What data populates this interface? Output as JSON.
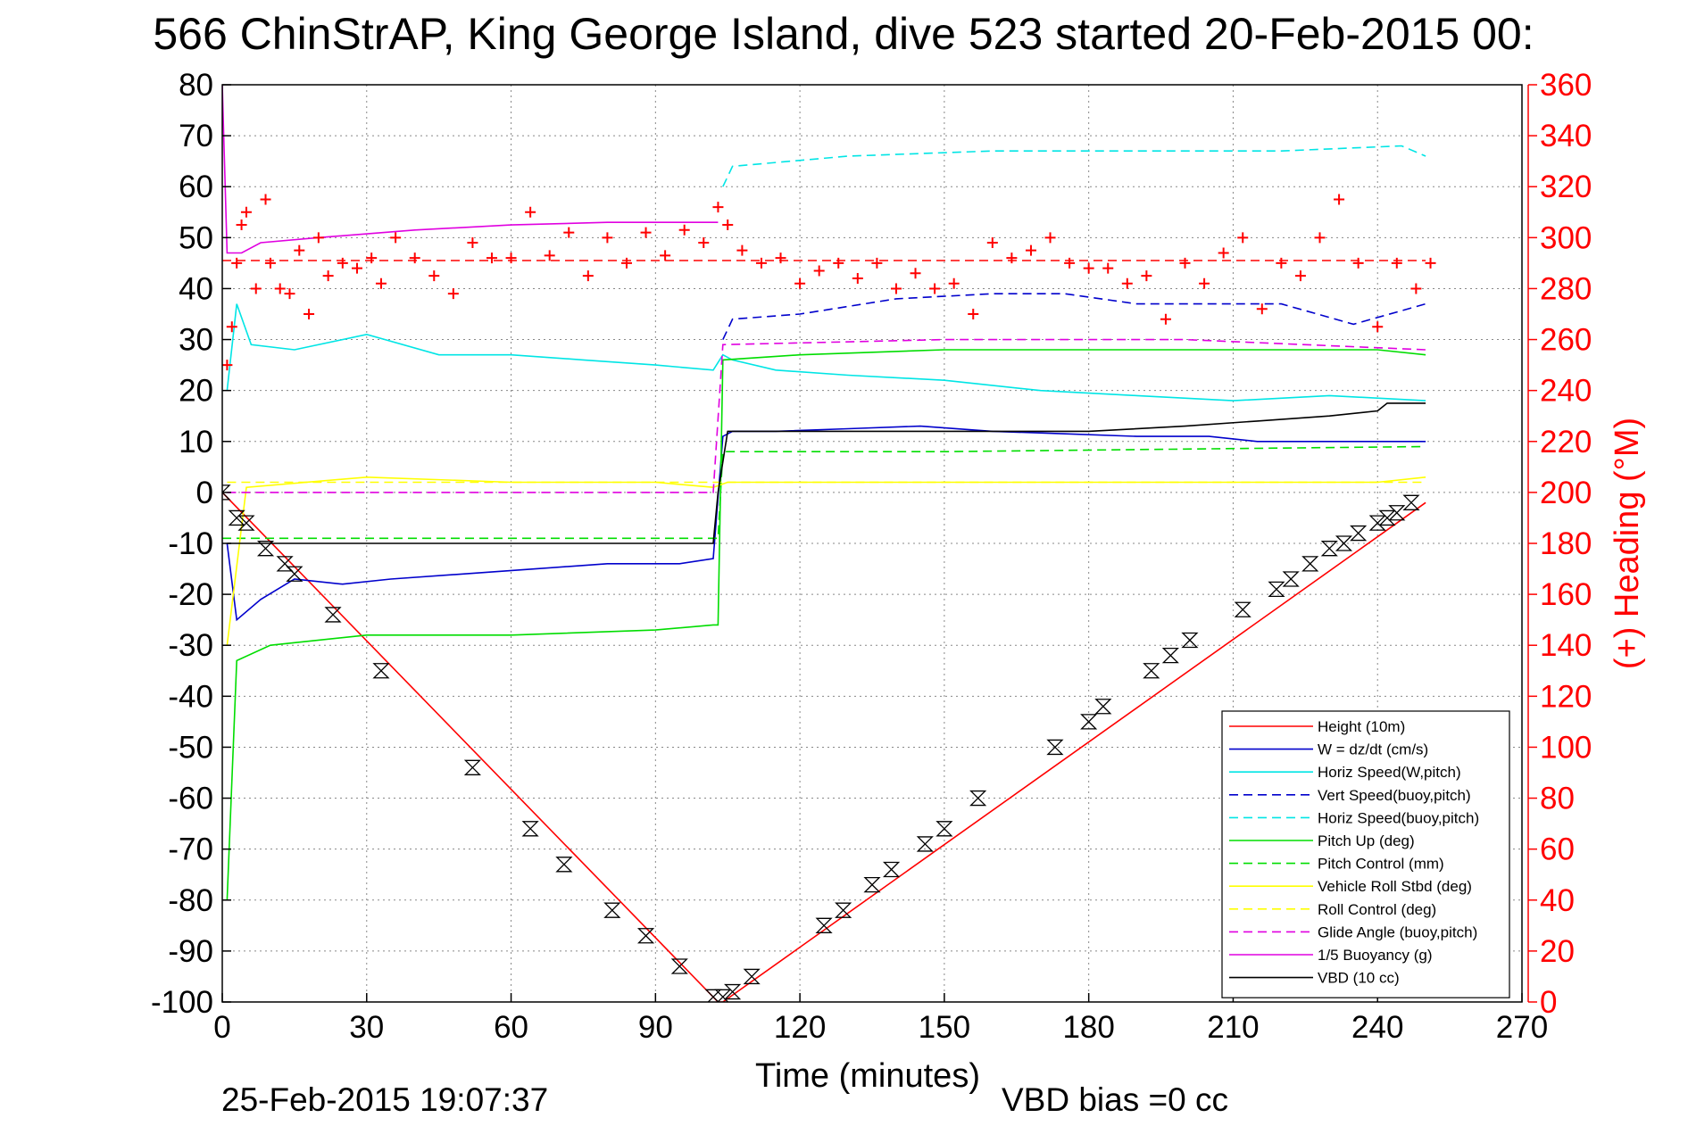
{
  "chart_data": {
    "type": "line",
    "title": "566 ChinStrAP, King George Island, dive 523 started 20-Feb-2015 00:",
    "xlabel": "Time (minutes)",
    "ylabel": "",
    "y2label": "(+) Heading (°M)",
    "xlim": [
      0,
      270
    ],
    "ylim": [
      -100,
      80
    ],
    "y2lim": [
      0,
      360
    ],
    "x_ticks": [
      "0",
      "30",
      "60",
      "90",
      "120",
      "150",
      "180",
      "210",
      "240",
      "270"
    ],
    "y_ticks": [
      "80",
      "70",
      "60",
      "50",
      "40",
      "30",
      "20",
      "10",
      "0",
      "-10",
      "-20",
      "-30",
      "-40",
      "-50",
      "-60",
      "-70",
      "-80",
      "-90",
      "-100"
    ],
    "y2_ticks": [
      "360",
      "340",
      "320",
      "300",
      "280",
      "260",
      "240",
      "220",
      "200",
      "180",
      "160",
      "140",
      "120",
      "100",
      "80",
      "60",
      "40",
      "20",
      "0"
    ],
    "grid": true,
    "legend_position": "bottom-right",
    "footer_left": "25-Feb-2015 19:07:37",
    "footer_right": "VBD bias =0 cc",
    "colors": {
      "red": "#ff0000",
      "blue": "#0000cc",
      "cyan": "#00e5e5",
      "green": "#00dd00",
      "yellow": "#ffff00",
      "magenta": "#e000e0",
      "black": "#000000"
    },
    "series": [
      {
        "name": "Height (10m)",
        "color": "#ff0000",
        "style": "solid",
        "x": [
          0,
          103,
          104,
          250
        ],
        "y": [
          0,
          -100,
          -100,
          -2
        ]
      },
      {
        "name": "W = dz/dt (cm/s)",
        "color": "#0000cc",
        "style": "solid",
        "x": [
          1,
          3,
          8,
          15,
          25,
          35,
          50,
          65,
          80,
          95,
          102,
          104,
          106,
          115,
          130,
          145,
          160,
          175,
          190,
          205,
          215,
          225,
          240,
          250
        ],
        "y": [
          -10,
          -25,
          -21,
          -17,
          -18,
          -17,
          -16,
          -15,
          -14,
          -14,
          -13,
          11,
          12,
          12,
          12.5,
          13,
          12,
          11.5,
          11,
          11,
          10,
          10,
          10,
          10
        ]
      },
      {
        "name": "Horiz Speed(W,pitch)",
        "color": "#00e5e5",
        "style": "solid",
        "x": [
          1,
          3,
          6,
          15,
          30,
          45,
          60,
          75,
          90,
          102,
          104,
          106,
          115,
          130,
          150,
          170,
          190,
          210,
          230,
          250
        ],
        "y": [
          20,
          37,
          29,
          28,
          31,
          27,
          27,
          26,
          25,
          24,
          27,
          26,
          24,
          23,
          22,
          20,
          19,
          18,
          19,
          18
        ]
      },
      {
        "name": "Vert Speed(buoy,pitch)",
        "color": "#0000cc",
        "style": "dashed",
        "x": [
          104,
          106,
          120,
          140,
          160,
          175,
          190,
          205,
          220,
          235,
          250
        ],
        "y": [
          30,
          34,
          35,
          38,
          39,
          39,
          37,
          37,
          37,
          33,
          37
        ]
      },
      {
        "name": "Horiz Speed(buoy,pitch)",
        "color": "#00e5e5",
        "style": "dashed",
        "x": [
          104,
          106,
          130,
          160,
          190,
          220,
          245,
          250
        ],
        "y": [
          60,
          64,
          66,
          67,
          67,
          67,
          68,
          66
        ]
      },
      {
        "name": "Pitch Up (deg)",
        "color": "#00dd00",
        "style": "solid",
        "x": [
          1,
          3,
          10,
          30,
          60,
          90,
          102,
          103,
          104,
          120,
          150,
          180,
          210,
          240,
          250
        ],
        "y": [
          -80,
          -33,
          -30,
          -28,
          -28,
          -27,
          -26,
          -26,
          26,
          27,
          28,
          28,
          28,
          28,
          27
        ]
      },
      {
        "name": "Pitch Control (mm)",
        "color": "#00dd00",
        "style": "dashed",
        "x": [
          0,
          3,
          102,
          103,
          104,
          150,
          200,
          250
        ],
        "y": [
          -9,
          -9,
          -9,
          -9,
          8,
          8,
          8.5,
          9
        ]
      },
      {
        "name": "Vehicle Roll Stbd (deg)",
        "color": "#ffff00",
        "style": "solid",
        "x": [
          1,
          5,
          30,
          60,
          90,
          102,
          105,
          150,
          200,
          240,
          250
        ],
        "y": [
          -30,
          1,
          3,
          2,
          2,
          1,
          2,
          2,
          2,
          2,
          3
        ]
      },
      {
        "name": "Roll Control (deg)",
        "color": "#ffff00",
        "style": "dashed",
        "x": [
          1,
          250
        ],
        "y": [
          2,
          2
        ]
      },
      {
        "name": "Glide Angle (buoy,pitch)",
        "color": "#e000e0",
        "style": "dashed",
        "x": [
          1,
          102,
          104,
          150,
          200,
          250
        ],
        "y": [
          0,
          0,
          29,
          30,
          30,
          28
        ]
      },
      {
        "name": "1/5 Buoyancy (g)",
        "color": "#e000e0",
        "style": "solid",
        "x": [
          0,
          1,
          4,
          8,
          20,
          40,
          60,
          80,
          100,
          103
        ],
        "y": [
          80,
          47,
          47,
          49,
          50,
          51.5,
          52.5,
          53,
          53,
          53
        ]
      },
      {
        "name": "VBD (10 cc)",
        "color": "#000000",
        "style": "solid",
        "x": [
          1,
          3,
          102,
          103,
          105,
          130,
          160,
          180,
          200,
          215,
          230,
          240,
          242,
          250
        ],
        "y": [
          -10,
          -10,
          -10,
          0,
          12,
          12,
          12,
          12,
          13,
          14,
          15,
          16,
          17.5,
          17.5
        ]
      },
      {
        "name": "Heading",
        "color": "#ff0000",
        "style": "markers",
        "axis": "right",
        "x": [
          1,
          2,
          3,
          4,
          5,
          7,
          9,
          10,
          12,
          14,
          16,
          18,
          20,
          22,
          25,
          28,
          31,
          33,
          36,
          40,
          44,
          48,
          52,
          56,
          60,
          64,
          68,
          72,
          76,
          80,
          84,
          88,
          92,
          96,
          100,
          103,
          105,
          108,
          112,
          116,
          120,
          124,
          128,
          132,
          136,
          140,
          144,
          148,
          152,
          156,
          160,
          164,
          168,
          172,
          176,
          180,
          184,
          188,
          192,
          196,
          200,
          204,
          208,
          212,
          216,
          220,
          224,
          228,
          232,
          236,
          240,
          244,
          248,
          251
        ],
        "y": [
          250,
          265,
          290,
          305,
          310,
          280,
          315,
          290,
          280,
          278,
          295,
          270,
          300,
          285,
          290,
          288,
          292,
          282,
          300,
          292,
          285,
          278,
          298,
          292,
          292,
          310,
          293,
          302,
          285,
          300,
          290,
          302,
          293,
          303,
          298,
          312,
          305,
          295,
          290,
          292,
          282,
          287,
          290,
          284,
          290,
          280,
          286,
          280,
          282,
          270,
          298,
          292,
          295,
          300,
          290,
          288,
          288,
          282,
          285,
          268,
          290,
          282,
          294,
          300,
          272,
          290,
          285,
          300,
          315,
          290,
          265,
          290,
          280,
          290
        ]
      },
      {
        "name": "Heading reference",
        "color": "#ff0000",
        "style": "dashed",
        "axis": "right",
        "x": [
          0,
          250
        ],
        "y": [
          291,
          291
        ]
      },
      {
        "name": "Height markers",
        "color": "#000000",
        "style": "markers",
        "x": [
          0,
          3,
          5,
          9,
          13,
          15,
          23,
          33,
          52,
          64,
          71,
          81,
          88,
          95,
          102,
          104,
          106,
          110,
          125,
          129,
          135,
          139,
          146,
          150,
          157,
          173,
          180,
          183,
          193,
          197,
          201,
          212,
          219,
          222,
          226,
          230,
          233,
          236,
          240,
          242,
          244,
          247
        ],
        "y": [
          0,
          -5,
          -6,
          -11,
          -14,
          -16,
          -24,
          -35,
          -54,
          -66,
          -73,
          -82,
          -87,
          -93,
          -99,
          -99,
          -98,
          -95,
          -85,
          -82,
          -77,
          -74,
          -69,
          -66,
          -60,
          -50,
          -45,
          -42,
          -35,
          -32,
          -29,
          -23,
          -19,
          -17,
          -14,
          -11,
          -10,
          -8,
          -6,
          -5,
          -4,
          -2
        ]
      }
    ]
  }
}
